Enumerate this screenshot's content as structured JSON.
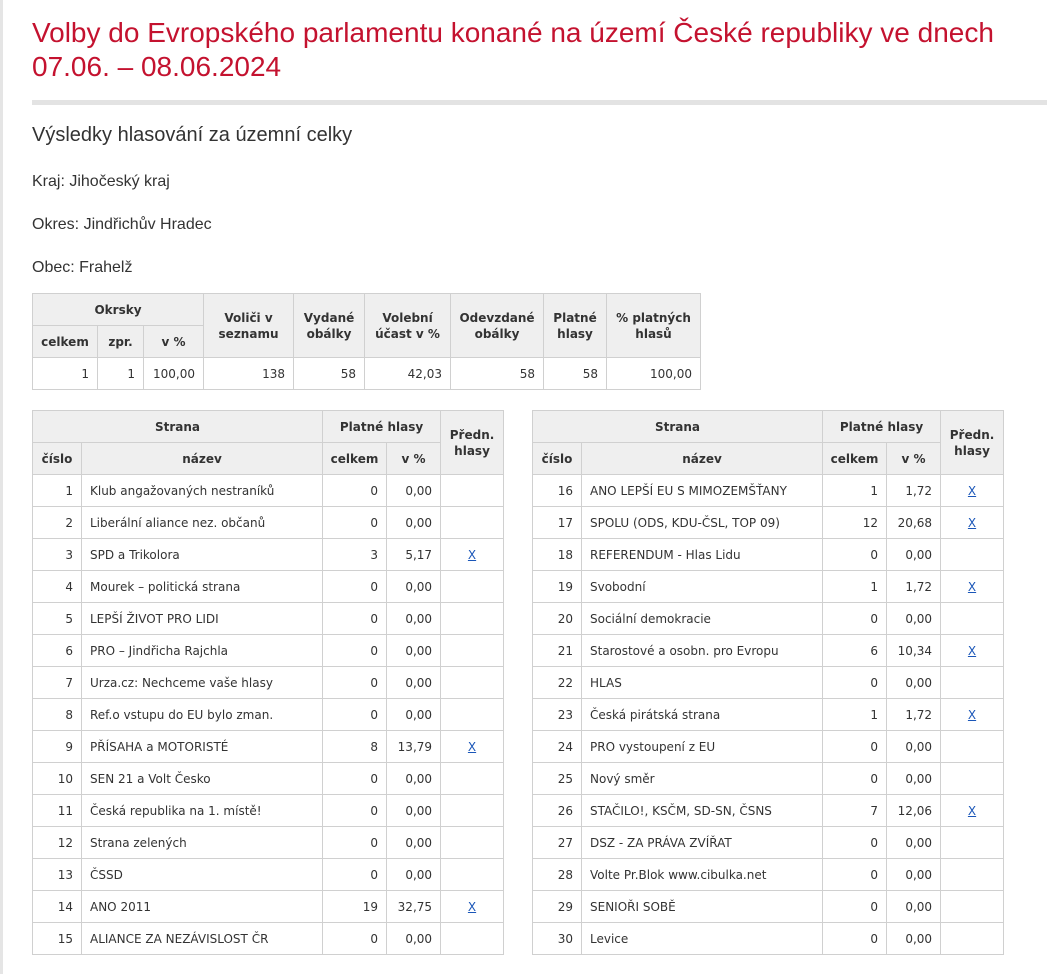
{
  "title": "Volby do Evropského parlamentu konané na území České republiky ve dnech 07.06. – 08.06.2024",
  "subtitle": "Výsledky hlasování za územní celky",
  "kraj": "Kraj: Jihočeský kraj",
  "okres": "Okres: Jindřichův Hradec",
  "obec": "Obec: Frahelž",
  "summary": {
    "headers": {
      "okrsky": "Okrsky",
      "celkem": "celkem",
      "zpr": "zpr.",
      "v_pct": "v %",
      "volici": "Voliči v seznamu",
      "vydane": "Vydané obálky",
      "ucast": "Volební účast v %",
      "odevzdane": "Odevzdané obálky",
      "platne": "Platné hlasy",
      "pct_platnych": "% platných hlasů"
    },
    "values": {
      "celkem": "1",
      "zpr": "1",
      "v_pct": "100,00",
      "volici": "138",
      "vydane": "58",
      "ucast": "42,03",
      "odevzdane": "58",
      "platne": "58",
      "pct_platnych": "100,00"
    }
  },
  "party_headers": {
    "strana": "Strana",
    "platne": "Platné hlasy",
    "predn": "Předn. hlasy",
    "cislo": "číslo",
    "nazev": "název",
    "celkem": "celkem",
    "v_pct": "v %"
  },
  "pref_link": "X",
  "parties_left": [
    {
      "n": "1",
      "name": "Klub angažovaných nestraníků",
      "votes": "0",
      "pct": "0,00",
      "pref": false
    },
    {
      "n": "2",
      "name": "Liberální aliance nez. občanů",
      "votes": "0",
      "pct": "0,00",
      "pref": false
    },
    {
      "n": "3",
      "name": "SPD a Trikolora",
      "votes": "3",
      "pct": "5,17",
      "pref": true
    },
    {
      "n": "4",
      "name": "Mourek – politická strana",
      "votes": "0",
      "pct": "0,00",
      "pref": false
    },
    {
      "n": "5",
      "name": "LEPŠÍ ŽIVOT PRO LIDI",
      "votes": "0",
      "pct": "0,00",
      "pref": false
    },
    {
      "n": "6",
      "name": "PRO – Jindřicha Rajchla",
      "votes": "0",
      "pct": "0,00",
      "pref": false
    },
    {
      "n": "7",
      "name": "Urza.cz: Nechceme vaše hlasy",
      "votes": "0",
      "pct": "0,00",
      "pref": false
    },
    {
      "n": "8",
      "name": "Ref.o vstupu do EU bylo zman.",
      "votes": "0",
      "pct": "0,00",
      "pref": false
    },
    {
      "n": "9",
      "name": "PŘÍSAHA a MOTORISTÉ",
      "votes": "8",
      "pct": "13,79",
      "pref": true
    },
    {
      "n": "10",
      "name": "SEN 21 a Volt Česko",
      "votes": "0",
      "pct": "0,00",
      "pref": false
    },
    {
      "n": "11",
      "name": "Česká republika na 1. místě!",
      "votes": "0",
      "pct": "0,00",
      "pref": false
    },
    {
      "n": "12",
      "name": "Strana zelených",
      "votes": "0",
      "pct": "0,00",
      "pref": false
    },
    {
      "n": "13",
      "name": "ČSSD",
      "votes": "0",
      "pct": "0,00",
      "pref": false
    },
    {
      "n": "14",
      "name": "ANO 2011",
      "votes": "19",
      "pct": "32,75",
      "pref": true
    },
    {
      "n": "15",
      "name": "ALIANCE ZA NEZÁVISLOST ČR",
      "votes": "0",
      "pct": "0,00",
      "pref": false
    }
  ],
  "parties_right": [
    {
      "n": "16",
      "name": "ANO LEPŠÍ EU S MIMOZEMŠŤANY",
      "votes": "1",
      "pct": "1,72",
      "pref": true
    },
    {
      "n": "17",
      "name": "SPOLU (ODS, KDU-ČSL, TOP 09)",
      "votes": "12",
      "pct": "20,68",
      "pref": true
    },
    {
      "n": "18",
      "name": "REFERENDUM - Hlas Lidu",
      "votes": "0",
      "pct": "0,00",
      "pref": false
    },
    {
      "n": "19",
      "name": "Svobodní",
      "votes": "1",
      "pct": "1,72",
      "pref": true
    },
    {
      "n": "20",
      "name": "Sociální demokracie",
      "votes": "0",
      "pct": "0,00",
      "pref": false
    },
    {
      "n": "21",
      "name": "Starostové a osobn. pro Evropu",
      "votes": "6",
      "pct": "10,34",
      "pref": true
    },
    {
      "n": "22",
      "name": "HLAS",
      "votes": "0",
      "pct": "0,00",
      "pref": false
    },
    {
      "n": "23",
      "name": "Česká pirátská strana",
      "votes": "1",
      "pct": "1,72",
      "pref": true
    },
    {
      "n": "24",
      "name": "PRO vystoupení z EU",
      "votes": "0",
      "pct": "0,00",
      "pref": false
    },
    {
      "n": "25",
      "name": "Nový směr",
      "votes": "0",
      "pct": "0,00",
      "pref": false
    },
    {
      "n": "26",
      "name": "STAČILO!, KSČM, SD-SN, ČSNS",
      "votes": "7",
      "pct": "12,06",
      "pref": true
    },
    {
      "n": "27",
      "name": "DSZ - ZA PRÁVA ZVÍŘAT",
      "votes": "0",
      "pct": "0,00",
      "pref": false
    },
    {
      "n": "28",
      "name": "Volte Pr.Blok www.cibulka.net",
      "votes": "0",
      "pct": "0,00",
      "pref": false
    },
    {
      "n": "29",
      "name": "SENIOŘI SOBĚ",
      "votes": "0",
      "pct": "0,00",
      "pref": false
    },
    {
      "n": "30",
      "name": "Levice",
      "votes": "0",
      "pct": "0,00",
      "pref": false
    }
  ]
}
